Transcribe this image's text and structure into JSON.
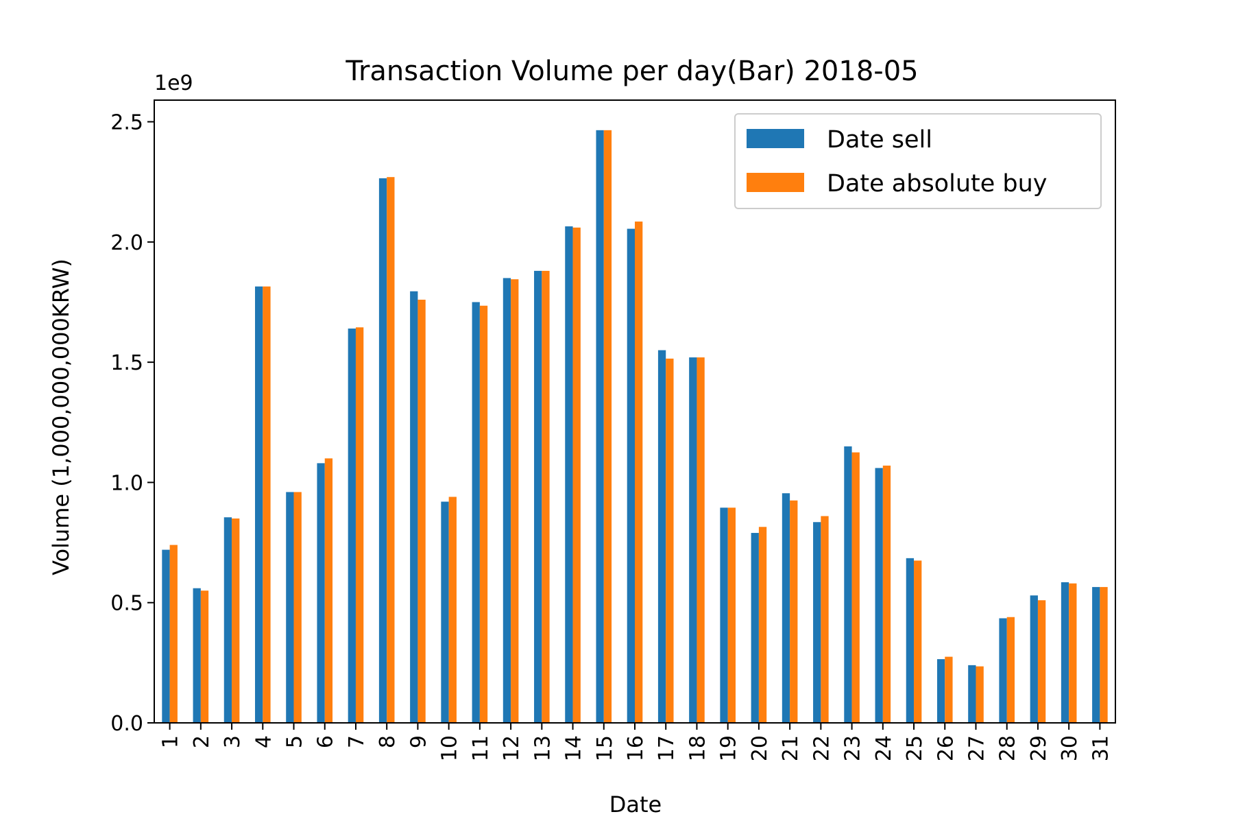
{
  "chart_data": {
    "type": "bar",
    "title": "Transaction Volume per day(Bar) 2018-05",
    "xlabel": "Date",
    "ylabel": "Volume (1,000,000,000KRW)",
    "offset_label": "1e9",
    "ylim": [
      0,
      2.59
    ],
    "yticks": [
      "0.0",
      "0.5",
      "1.0",
      "1.5",
      "2.0",
      "2.5"
    ],
    "ytick_values": [
      0,
      0.5,
      1.0,
      1.5,
      2.0,
      2.5
    ],
    "categories": [
      "1",
      "2",
      "3",
      "4",
      "5",
      "6",
      "7",
      "8",
      "9",
      "10",
      "11",
      "12",
      "13",
      "14",
      "15",
      "16",
      "17",
      "18",
      "19",
      "20",
      "21",
      "22",
      "23",
      "24",
      "25",
      "26",
      "27",
      "28",
      "29",
      "30",
      "31"
    ],
    "series": [
      {
        "name": "Date sell",
        "color": "#1f77b4",
        "values": [
          0.72,
          0.56,
          0.855,
          1.815,
          0.96,
          1.08,
          1.64,
          2.265,
          1.795,
          0.92,
          1.75,
          1.85,
          1.88,
          2.065,
          2.465,
          2.055,
          1.55,
          1.52,
          0.895,
          0.79,
          0.955,
          0.835,
          1.15,
          1.06,
          0.685,
          0.265,
          0.24,
          0.435,
          0.53,
          0.585,
          0.565
        ]
      },
      {
        "name": "Date absolute buy",
        "color": "#ff7f0e",
        "values": [
          0.74,
          0.55,
          0.85,
          1.815,
          0.96,
          1.1,
          1.645,
          2.27,
          1.76,
          0.94,
          1.735,
          1.845,
          1.88,
          2.06,
          2.465,
          2.085,
          1.515,
          1.52,
          0.895,
          0.815,
          0.925,
          0.86,
          1.125,
          1.07,
          0.675,
          0.275,
          0.235,
          0.44,
          0.51,
          0.58,
          0.565
        ]
      }
    ],
    "legend_placement": "top-right",
    "grid": false
  }
}
